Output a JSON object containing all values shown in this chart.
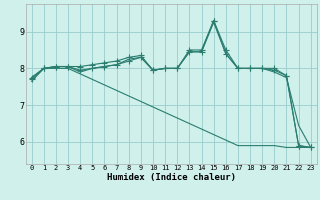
{
  "xlabel": "Humidex (Indice chaleur)",
  "ylabel": "",
  "xlim": [
    -0.5,
    23.5
  ],
  "ylim": [
    5.4,
    9.75
  ],
  "yticks": [
    6,
    7,
    8,
    9
  ],
  "xticks": [
    0,
    1,
    2,
    3,
    4,
    5,
    6,
    7,
    8,
    9,
    10,
    11,
    12,
    13,
    14,
    15,
    16,
    17,
    18,
    19,
    20,
    21,
    22,
    23
  ],
  "bg_color": "#cff0eb",
  "grid_color": "#99cccc",
  "line_color": "#2a7d6f",
  "lines": [
    {
      "y": [
        7.7,
        8.0,
        8.05,
        8.05,
        8.05,
        8.1,
        8.15,
        8.2,
        8.3,
        8.35,
        7.95,
        8.0,
        8.0,
        8.5,
        8.5,
        9.3,
        8.5,
        8.0,
        8.0,
        8.0,
        8.0,
        7.8,
        5.9,
        5.85
      ],
      "marker": true
    },
    {
      "y": [
        7.75,
        8.0,
        8.05,
        8.05,
        7.95,
        8.0,
        8.05,
        8.1,
        8.2,
        8.3,
        7.95,
        8.0,
        8.0,
        8.45,
        8.45,
        9.3,
        8.4,
        8.0,
        8.0,
        8.0,
        7.95,
        7.8,
        5.9,
        5.85
      ],
      "marker": true
    },
    {
      "y": [
        7.75,
        8.0,
        8.05,
        8.05,
        7.9,
        8.0,
        8.05,
        8.1,
        8.25,
        8.3,
        7.95,
        8.0,
        8.0,
        8.45,
        8.45,
        9.25,
        8.4,
        8.0,
        8.0,
        8.0,
        7.9,
        7.75,
        6.45,
        5.85
      ],
      "marker": false
    },
    {
      "y": [
        7.65,
        8.0,
        8.0,
        8.0,
        7.85,
        7.7,
        7.55,
        7.4,
        7.25,
        7.1,
        6.95,
        6.8,
        6.65,
        6.5,
        6.35,
        6.2,
        6.05,
        5.9,
        5.9,
        5.9,
        5.9,
        5.85,
        5.85,
        5.85
      ],
      "marker": false
    }
  ],
  "marker": "+",
  "marker_size": 4,
  "line_width": 0.8
}
